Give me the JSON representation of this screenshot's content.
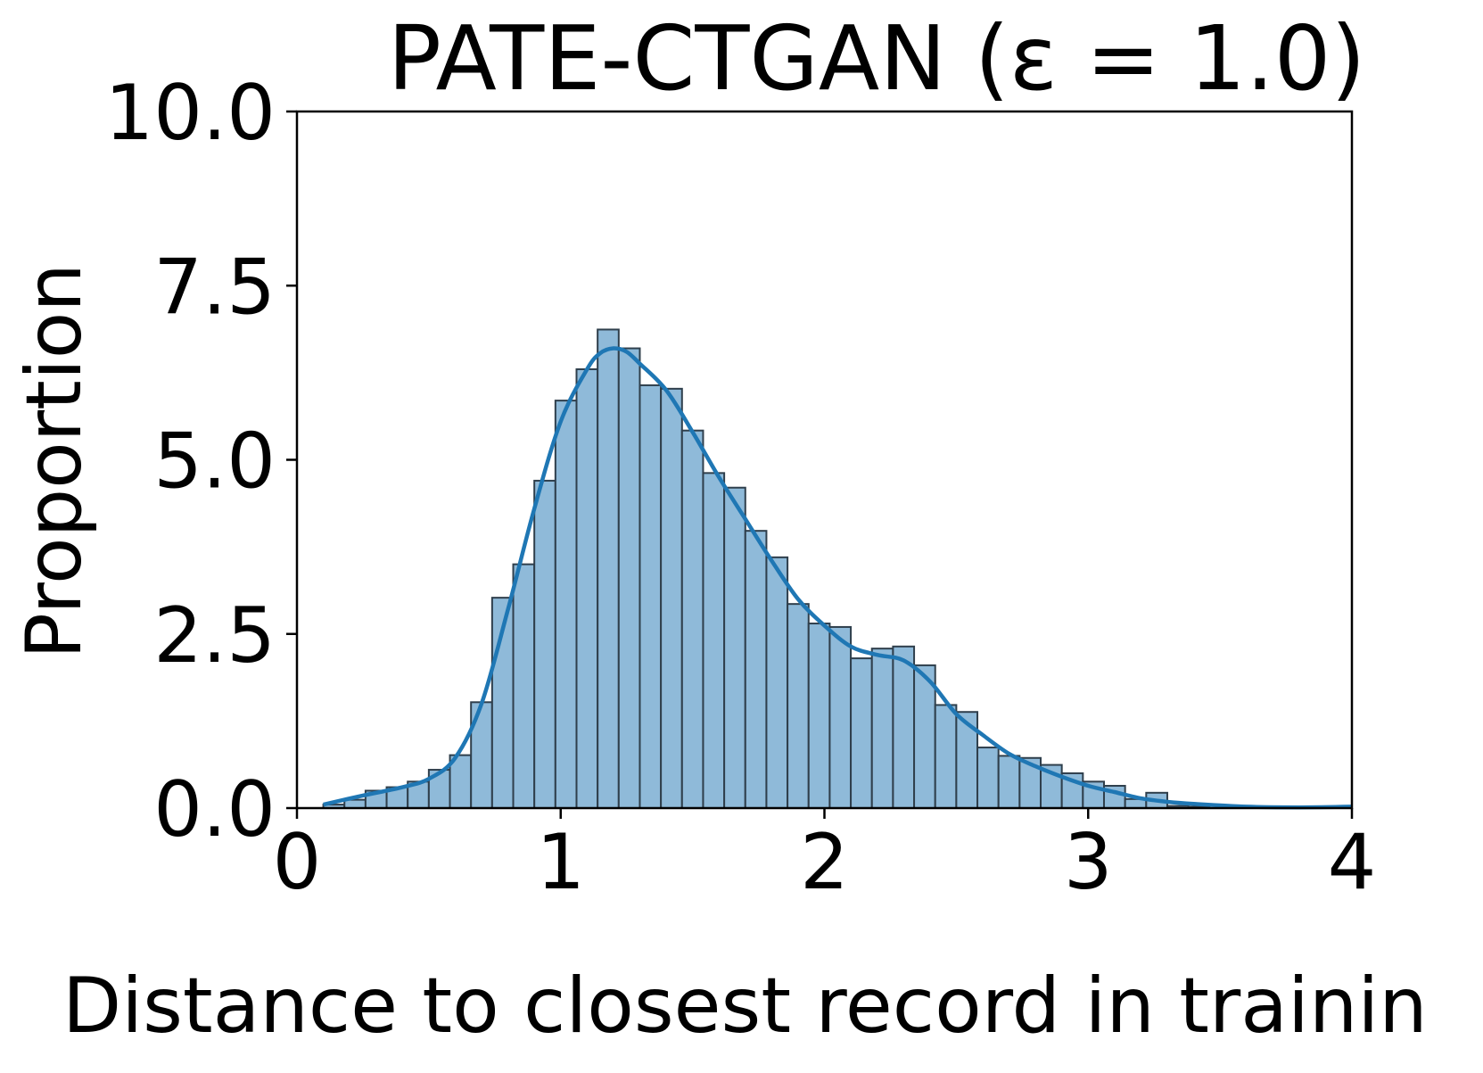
{
  "chart_data": {
    "type": "bar",
    "title": "PATE-CTGAN (ε = 1.0)",
    "xlabel": "Distance to closest record in trainin",
    "ylabel": "Proportion",
    "xlim": [
      0,
      4
    ],
    "ylim": [
      0,
      10
    ],
    "x_ticks": [
      "0",
      "1",
      "2",
      "3",
      "4"
    ],
    "y_ticks": [
      "0.0",
      "2.5",
      "5.0",
      "7.5",
      "10.0"
    ],
    "grid": false,
    "bin_width": 0.08,
    "bins_start": [
      0.1,
      0.18,
      0.26,
      0.34,
      0.42,
      0.5,
      0.58,
      0.66,
      0.74,
      0.82,
      0.9,
      0.98,
      1.06,
      1.14,
      1.22,
      1.3,
      1.38,
      1.46,
      1.54,
      1.62,
      1.7,
      1.78,
      1.86,
      1.94,
      2.02,
      2.1,
      2.18,
      2.26,
      2.34,
      2.42,
      2.5,
      2.58,
      2.66,
      2.74,
      2.82,
      2.9,
      2.98,
      3.06,
      3.14,
      3.22,
      3.3,
      3.38
    ],
    "values": [
      0.05,
      0.12,
      0.25,
      0.3,
      0.38,
      0.55,
      0.76,
      1.52,
      3.02,
      3.5,
      4.7,
      5.85,
      6.3,
      6.87,
      6.6,
      6.07,
      6.02,
      5.42,
      4.81,
      4.6,
      3.98,
      3.6,
      2.93,
      2.65,
      2.6,
      2.15,
      2.29,
      2.32,
      2.05,
      1.48,
      1.38,
      0.87,
      0.75,
      0.72,
      0.62,
      0.5,
      0.38,
      0.32,
      0.13,
      0.22,
      0.03,
      0.02
    ],
    "kde": {
      "x": [
        0.1,
        0.25,
        0.4,
        0.5,
        0.6,
        0.7,
        0.8,
        0.9,
        1.0,
        1.1,
        1.15,
        1.2,
        1.25,
        1.3,
        1.4,
        1.5,
        1.6,
        1.7,
        1.8,
        1.9,
        2.0,
        2.1,
        2.2,
        2.3,
        2.4,
        2.5,
        2.6,
        2.7,
        2.8,
        2.9,
        3.0,
        3.1,
        3.2,
        3.3,
        3.4,
        3.6,
        3.8,
        4.0
      ],
      "y": [
        0.05,
        0.18,
        0.3,
        0.42,
        0.72,
        1.5,
        2.85,
        4.3,
        5.55,
        6.3,
        6.53,
        6.6,
        6.55,
        6.38,
        6.0,
        5.4,
        4.75,
        4.15,
        3.55,
        3.0,
        2.62,
        2.32,
        2.2,
        2.12,
        1.82,
        1.35,
        1.05,
        0.78,
        0.6,
        0.45,
        0.32,
        0.23,
        0.14,
        0.09,
        0.06,
        0.02,
        0.01,
        0.02
      ]
    },
    "colors": {
      "bar_fill": "#8fbad9",
      "bar_edge": "#2f3f4c",
      "kde_line": "#1f77b4",
      "axes": "#000000"
    }
  }
}
